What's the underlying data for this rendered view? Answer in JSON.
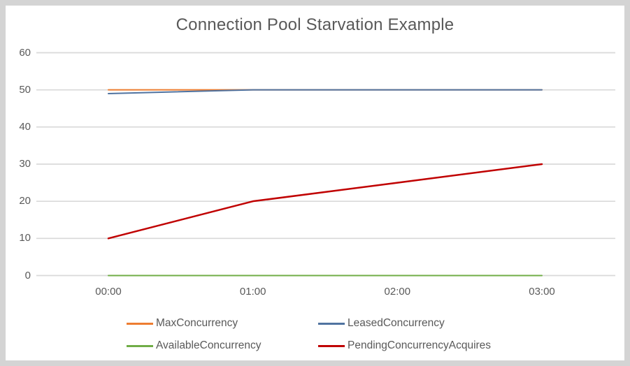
{
  "chart_data": {
    "type": "line",
    "title": "Connection Pool Starvation Example",
    "categories": [
      "00:00",
      "01:00",
      "02:00",
      "03:00"
    ],
    "series": [
      {
        "name": "MaxConcurrency",
        "color": "#ED7D31",
        "values": [
          50,
          50,
          50,
          50
        ]
      },
      {
        "name": "LeasedConcurrency",
        "color": "#5073A0",
        "values": [
          49,
          50,
          50,
          50
        ]
      },
      {
        "name": "AvailableConcurrency",
        "color": "#70AD47",
        "values": [
          0,
          0,
          0,
          0
        ]
      },
      {
        "name": "PendingConcurrencyAcquires",
        "color": "#C00000",
        "values": [
          10,
          20,
          25,
          30
        ]
      }
    ],
    "yticks": [
      0,
      10,
      20,
      30,
      40,
      50,
      60
    ],
    "ylim": [
      0,
      60
    ],
    "xlabel": "",
    "ylabel": "",
    "grid": "horizontal-only",
    "legend_position": "bottom-two-columns",
    "gridline_color": "#D9D9D9",
    "axis_text_color": "#595959",
    "title_color": "#595959",
    "frame_color": "#D4D4D4",
    "background_color": "#FFFFFF"
  }
}
